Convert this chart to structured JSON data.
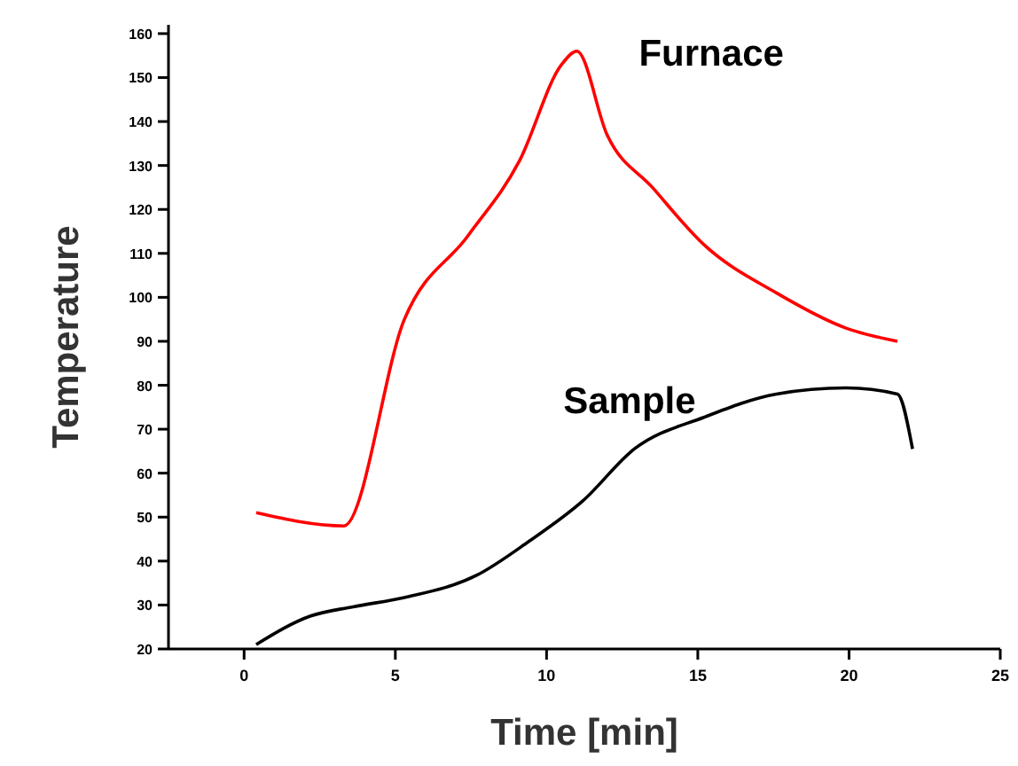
{
  "chart_data": {
    "type": "line",
    "xlabel": "Time [min]",
    "ylabel": "Temperature",
    "xlim": [
      -2.5,
      25
    ],
    "xticks": [
      0,
      5,
      10,
      15,
      20,
      25
    ],
    "ylim": [
      20,
      162
    ],
    "yticks": [
      20,
      30,
      40,
      50,
      60,
      70,
      80,
      90,
      100,
      110,
      120,
      130,
      140,
      150,
      160
    ],
    "grid": false,
    "marker": "none",
    "line_style": "solid",
    "series": [
      {
        "name": "Furnace",
        "color": "#ff0000",
        "x": [
          0.4,
          3.3,
          5.3,
          7.4,
          9.1,
          10.5,
          11,
          12,
          13.5,
          15.2,
          17.6,
          19.9,
          21.6
        ],
        "values": [
          51,
          48,
          95,
          114,
          131,
          153,
          156,
          137,
          125,
          112,
          101,
          93,
          90
        ]
      },
      {
        "name": "Sample",
        "color": "#000000",
        "x": [
          0.4,
          2.2,
          3.6,
          5.3,
          7.7,
          9.4,
          11.2,
          12.9,
          15.2,
          17.6,
          19.9,
          21.6,
          22.1
        ],
        "values": [
          21,
          27.5,
          29.6,
          31.7,
          36.8,
          44.4,
          53.7,
          65.5,
          72.7,
          78,
          79.4,
          78,
          65.5
        ]
      }
    ]
  }
}
